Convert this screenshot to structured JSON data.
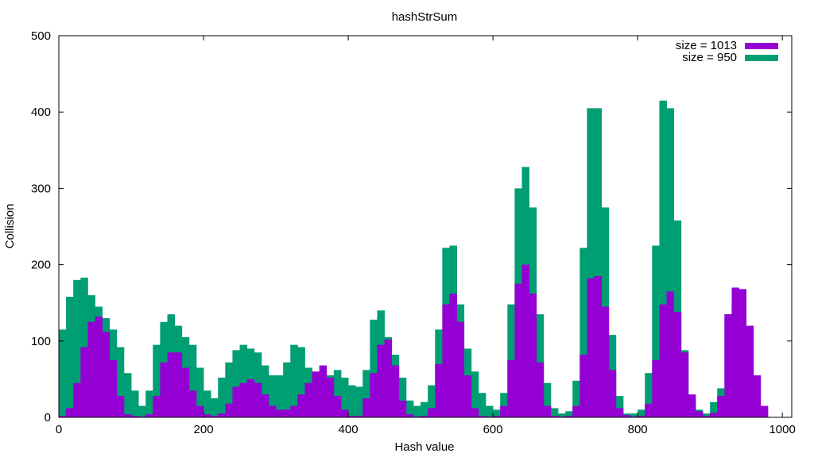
{
  "chart_data": {
    "type": "bar",
    "title": "hashStrSum",
    "xlabel": "Hash value",
    "ylabel": "Collision",
    "xlim": [
      0,
      1013
    ],
    "ylim": [
      0,
      500
    ],
    "xticks": [
      0,
      200,
      400,
      600,
      800,
      1000
    ],
    "yticks": [
      0,
      100,
      200,
      300,
      400,
      500
    ],
    "tick_labels_x": [
      "0",
      "200",
      "400",
      "600",
      "800",
      "1000"
    ],
    "tick_labels_y": [
      "0",
      "100",
      "200",
      "300",
      "400",
      "500"
    ],
    "grid": false,
    "legend_position": "top-right",
    "series": [
      {
        "name": "size = 950",
        "color": "#009e73",
        "bin_start": 0,
        "bin_step": 10,
        "values": [
          115,
          158,
          180,
          183,
          160,
          145,
          130,
          115,
          92,
          58,
          35,
          15,
          35,
          95,
          125,
          135,
          120,
          105,
          95,
          65,
          35,
          25,
          52,
          72,
          88,
          95,
          90,
          85,
          68,
          55,
          55,
          72,
          95,
          92,
          65,
          42,
          45,
          55,
          62,
          52,
          42,
          40,
          62,
          128,
          140,
          105,
          82,
          52,
          22,
          15,
          20,
          42,
          115,
          222,
          225,
          148,
          90,
          60,
          32,
          15,
          10,
          32,
          148,
          300,
          328,
          275,
          135,
          45,
          12,
          5,
          8,
          48,
          222,
          405,
          405,
          275,
          108,
          28,
          5,
          5,
          10,
          58,
          225,
          415,
          405,
          258,
          88,
          25,
          10,
          5,
          20,
          38,
          135,
          148,
          90,
          40,
          15,
          5
        ]
      },
      {
        "name": "size = 1013",
        "color": "#9400d3",
        "bin_start": 0,
        "bin_step": 10,
        "values": [
          2,
          12,
          45,
          92,
          125,
          132,
          112,
          75,
          28,
          4,
          2,
          1,
          4,
          28,
          72,
          85,
          85,
          65,
          35,
          15,
          4,
          2,
          5,
          18,
          40,
          45,
          50,
          45,
          30,
          15,
          10,
          10,
          15,
          30,
          45,
          60,
          68,
          52,
          28,
          10,
          2,
          2,
          25,
          58,
          95,
          102,
          68,
          22,
          4,
          1,
          2,
          12,
          70,
          148,
          162,
          125,
          55,
          12,
          2,
          1,
          2,
          15,
          75,
          175,
          200,
          162,
          72,
          15,
          2,
          1,
          2,
          15,
          82,
          182,
          185,
          145,
          62,
          12,
          3,
          1,
          2,
          18,
          75,
          148,
          165,
          138,
          85,
          30,
          8,
          2,
          6,
          28,
          135,
          170,
          168,
          120,
          55,
          15
        ]
      }
    ]
  }
}
